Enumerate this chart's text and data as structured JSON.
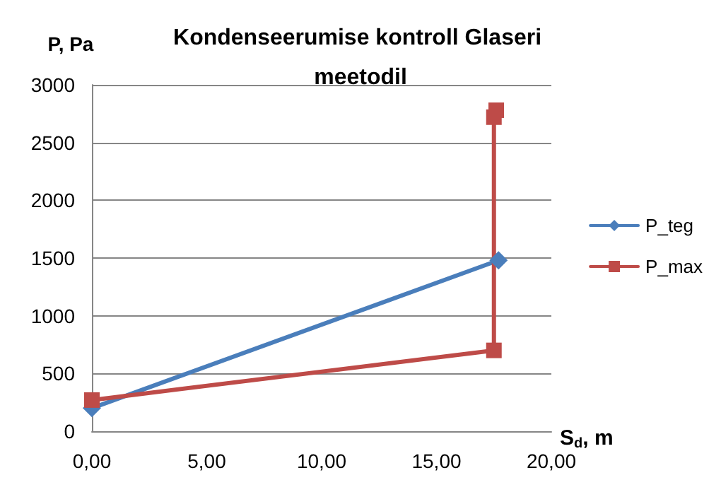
{
  "chart_data": {
    "type": "line",
    "title": "Kondenseerumise kontroll Glaseri meetodil",
    "xlabel": "S$_{d}$, m",
    "ylabel": "P, Pa",
    "xlim": [
      0,
      20
    ],
    "xticks": [
      {
        "value": 0,
        "label": "0,00"
      },
      {
        "value": 5,
        "label": "5,00"
      },
      {
        "value": 10,
        "label": "10,00"
      },
      {
        "value": 15,
        "label": "15,00"
      },
      {
        "value": 20,
        "label": "20,00"
      }
    ],
    "ylim": [
      0,
      3000
    ],
    "yticks": [
      0,
      500,
      1000,
      1500,
      2000,
      2500,
      3000
    ],
    "grid": "y",
    "legend": "right",
    "series": [
      {
        "name": "P_teg",
        "color": "#4a7ebb",
        "marker": "diamond",
        "x": [
          0,
          17.7
        ],
        "values": [
          200,
          1480
        ]
      },
      {
        "name": "P_max",
        "color": "#be4b48",
        "marker": "square",
        "x": [
          0,
          17.5,
          17.5,
          17.6
        ],
        "values": [
          270,
          700,
          2720,
          2780
        ]
      }
    ]
  }
}
